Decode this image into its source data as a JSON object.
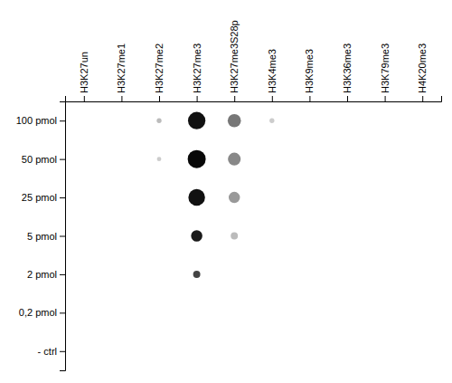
{
  "chart_data": {
    "type": "dot_matrix",
    "categories": [
      "H3K27un",
      "H3K27me1",
      "H3K27me2",
      "H3K27me3",
      "H3K27me3S28p",
      "H3K4me3",
      "H3K9me3",
      "H3K36me3",
      "H3K79me3",
      "H4K20me3"
    ],
    "rows": [
      "100 pmol",
      "50 pmol",
      "25 pmol",
      "5 pmol",
      "2 pmol",
      "0,2 pmol",
      "- ctrl"
    ],
    "x": [
      "H3K27me3",
      "H3K27me3",
      "H3K27me3",
      "H3K27me3",
      "H3K27me3",
      "H3K27me3S28p",
      "H3K27me3S28p",
      "H3K27me3S28p",
      "H3K27me3S28p",
      "H3K27me2",
      "H3K27me2",
      "H3K4me3"
    ],
    "y": [
      "100 pmol",
      "50 pmol",
      "25 pmol",
      "5 pmol",
      "2 pmol",
      "100 pmol",
      "50 pmol",
      "25 pmol",
      "5 pmol",
      "100 pmol",
      "50 pmol",
      "100 pmol"
    ],
    "sizes": [
      130,
      140,
      120,
      55,
      22,
      75,
      70,
      55,
      22,
      10,
      8,
      10
    ],
    "colors": [
      "#111111",
      "#080808",
      "#111111",
      "#1a1a1a",
      "#444444",
      "#777777",
      "#888888",
      "#999999",
      "#bbbbbb",
      "#bbbbbb",
      "#cccccc",
      "#cccccc"
    ],
    "grid": false
  }
}
